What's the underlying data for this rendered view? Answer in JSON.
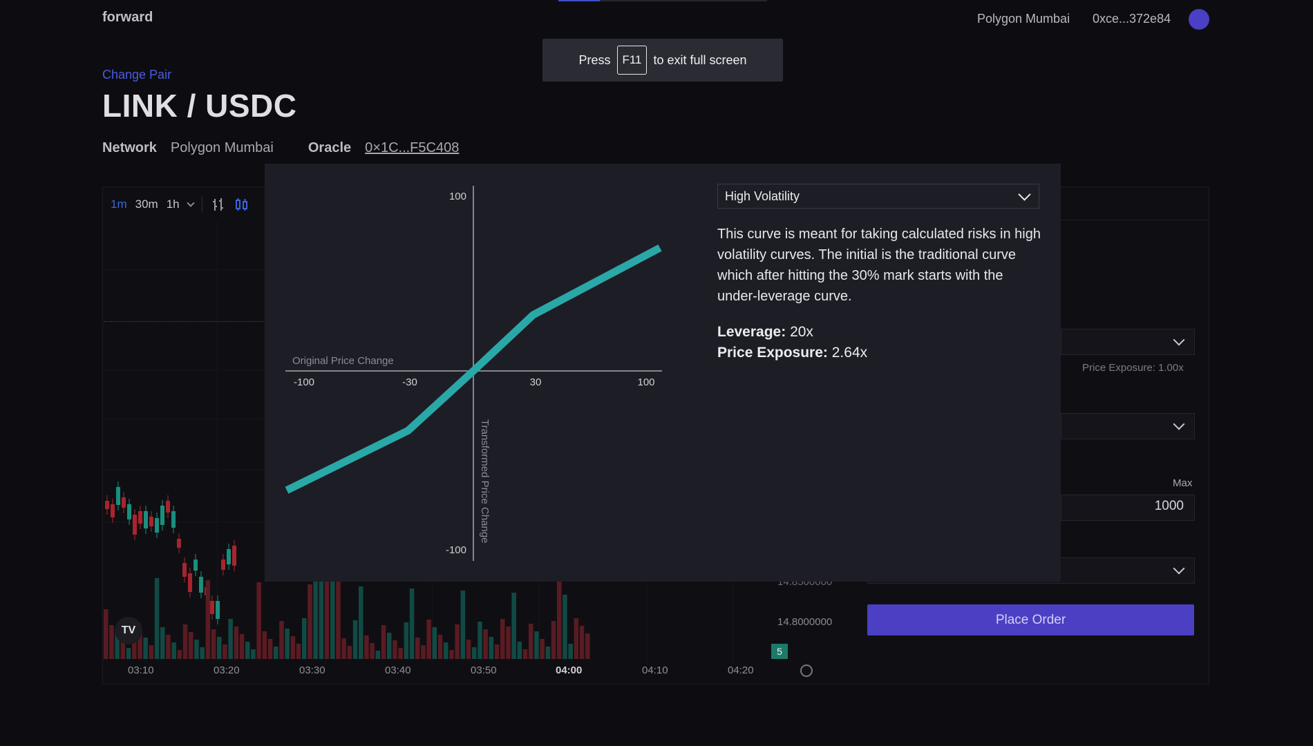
{
  "app": {
    "brand": "forward"
  },
  "header": {
    "network": "Polygon Mumbai",
    "address": "0xce...372e84",
    "avatar_color": "#4b3fc4"
  },
  "fullscreen_banner": {
    "pre": "Press",
    "key": "F11",
    "post": "to exit full screen"
  },
  "pair": {
    "change_label": "Change Pair",
    "title": "LINK / USDC",
    "network_label": "Network",
    "network_value": "Polygon Mumbai",
    "oracle_label": "Oracle",
    "oracle_value": "0×1C...F5C408"
  },
  "chart_toolbar": {
    "intervals": [
      "1m",
      "30m",
      "1h"
    ],
    "active_interval": "1m"
  },
  "price_chart": {
    "time_labels": [
      "03:10",
      "03:20",
      "03:30",
      "03:40",
      "03:50",
      "04:00",
      "04:10",
      "04:20"
    ],
    "price_labels": [
      "14.8500000",
      "14.8000000"
    ],
    "badge": "5",
    "logo": "TV"
  },
  "order_panel": {
    "price_exposure_note": "Price Exposure: 1.00x",
    "max_label": "Max",
    "amount_value": "1000",
    "place_order_label": "Place Order",
    "accent": "#4b3fc4"
  },
  "modal": {
    "curve_selector": {
      "selected": "High Volatility"
    },
    "description": "This curve is meant for taking calculated risks in high volatility curves. The initial is the traditional curve which after hitting the 30% mark starts with the under-leverage curve.",
    "leverage_label": "Leverage:",
    "leverage_value": "20x",
    "exposure_label": "Price Exposure:",
    "exposure_value": "2.64x"
  },
  "chart_data": {
    "type": "line",
    "xlabel": "Original Price Change",
    "ylabel": "Transformed Price Change",
    "x_ticks": [
      "-100",
      "-30",
      "30",
      "100"
    ],
    "y_ticks": [
      "100",
      "-100"
    ],
    "xlim": [
      -100,
      100
    ],
    "ylim": [
      -100,
      100
    ],
    "series": [
      {
        "name": "High Volatility",
        "color": "#2aa8a8",
        "x": [
          -100,
          -35,
          0,
          32,
          100
        ],
        "y": [
          -64,
          -32,
          0,
          30,
          66
        ]
      }
    ]
  }
}
